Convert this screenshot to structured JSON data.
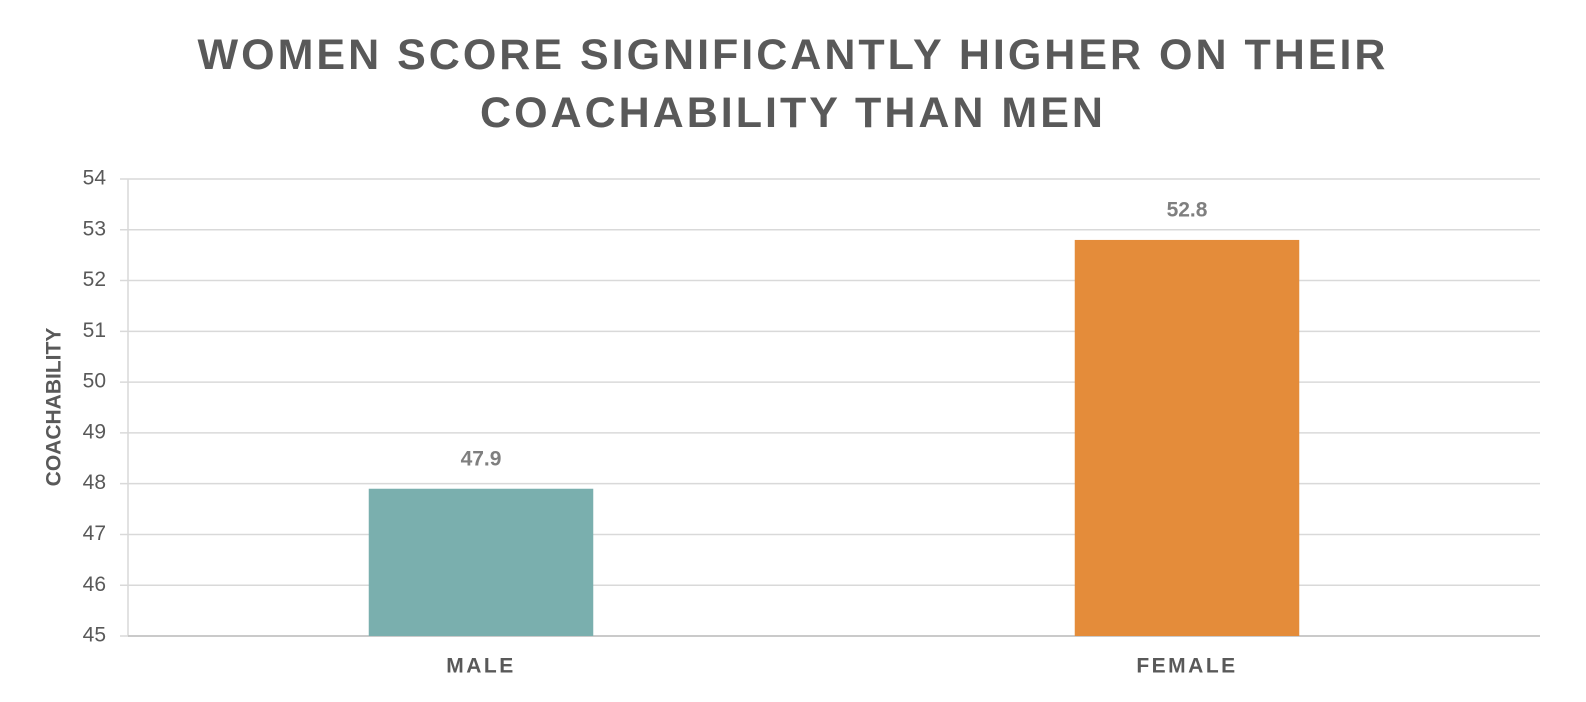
{
  "chart_data": {
    "type": "bar",
    "title": "WOMEN SCORE SIGNIFICANTLY HIGHER ON THEIR COACHABILITY THAN MEN",
    "y_label": "COACHABILITY",
    "categories": [
      "MALE",
      "FEMALE"
    ],
    "values": [
      47.9,
      52.8
    ],
    "colors": [
      "#7aafae",
      "#e48c3a"
    ],
    "ylim": [
      45,
      54
    ],
    "yticks": [
      45,
      46,
      47,
      48,
      49,
      50,
      51,
      52,
      53,
      54
    ],
    "grid": true
  }
}
